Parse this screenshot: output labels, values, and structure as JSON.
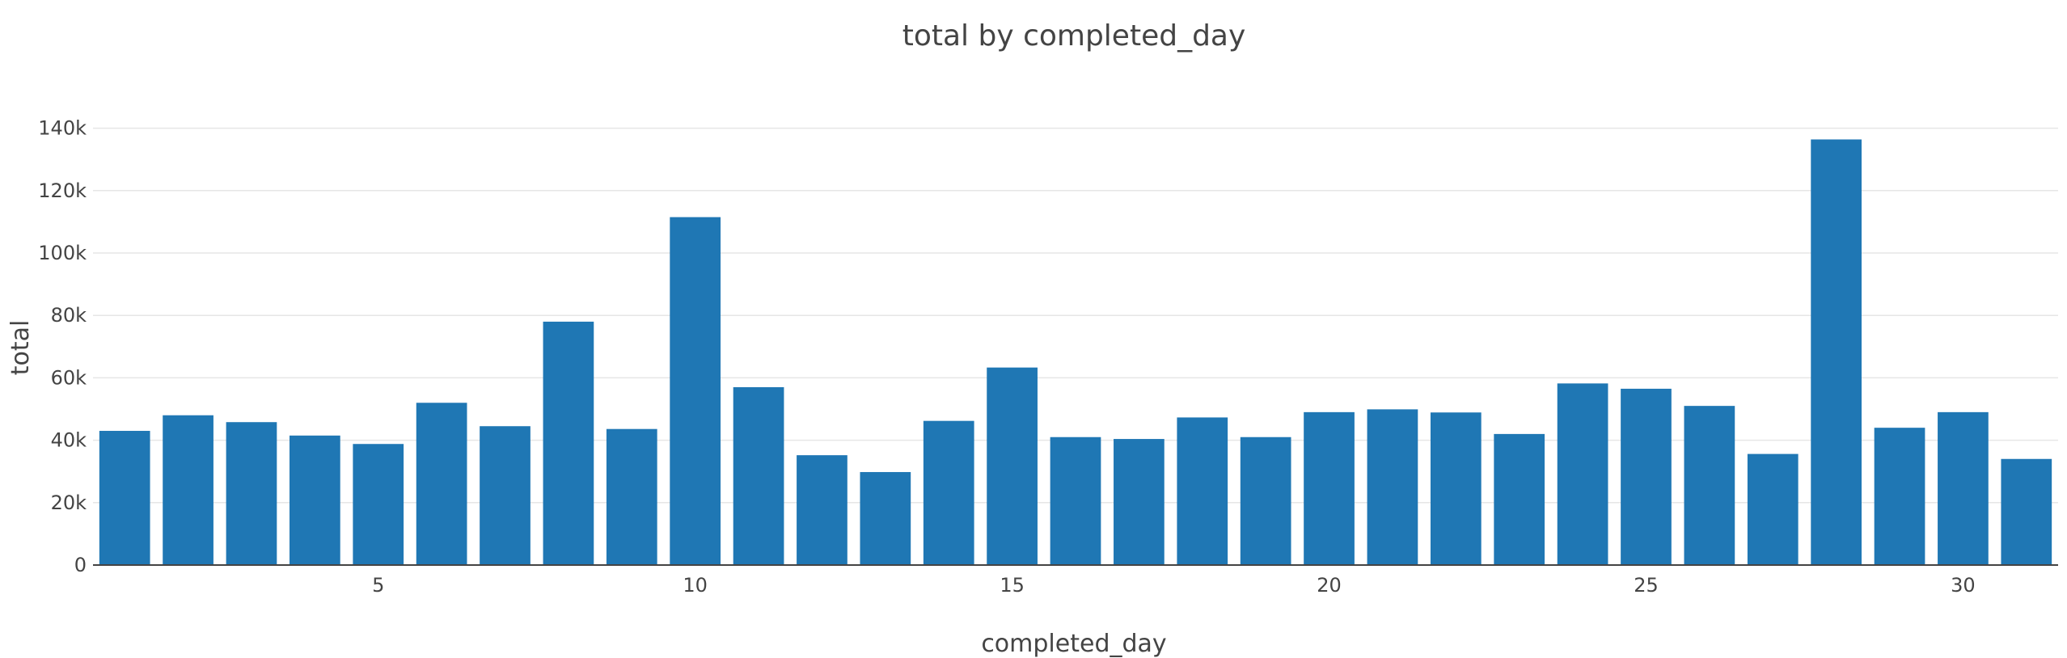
{
  "chart_data": {
    "type": "bar",
    "title": "total by completed_day",
    "xlabel": "completed_day",
    "ylabel": "total",
    "x": [
      1,
      2,
      3,
      4,
      5,
      6,
      7,
      8,
      9,
      10,
      11,
      12,
      13,
      14,
      15,
      16,
      17,
      18,
      19,
      20,
      21,
      22,
      23,
      24,
      25,
      26,
      27,
      28,
      29,
      30,
      31
    ],
    "values": [
      43000,
      48000,
      45800,
      41500,
      38800,
      52000,
      44500,
      78000,
      43600,
      111500,
      57000,
      35200,
      29800,
      46200,
      63300,
      41000,
      40400,
      47300,
      41000,
      49000,
      49900,
      48900,
      42000,
      58200,
      56500,
      51000,
      35600,
      136400,
      44000,
      49000,
      34000
    ],
    "xlim": [
      0.5,
      31.5
    ],
    "ylim": [
      0,
      150000
    ],
    "xticks": [
      5,
      10,
      15,
      20,
      25,
      30
    ],
    "xtick_labels": [
      "5",
      "10",
      "15",
      "20",
      "25",
      "30"
    ],
    "yticks": [
      0,
      20000,
      40000,
      60000,
      80000,
      100000,
      120000,
      140000
    ],
    "ytick_labels": [
      "0",
      "20k",
      "40k",
      "60k",
      "80k",
      "100k",
      "120k",
      "140k"
    ],
    "grid": true,
    "bar_color": "#1f77b4",
    "gridline_color": "#e6e6e6"
  }
}
